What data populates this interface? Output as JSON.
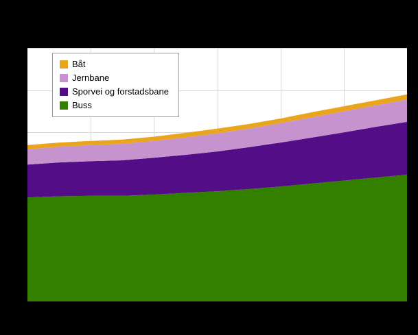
{
  "figure": {
    "background": "#000000",
    "plot_background": "#ffffff",
    "gridline_color": "#d8d8d8"
  },
  "legend": {
    "items": [
      {
        "label": "Båt",
        "color": "#e9a51d"
      },
      {
        "label": "Jernbane",
        "color": "#c693ce"
      },
      {
        "label": "Sporvei og forstadsbane",
        "color": "#520d87"
      },
      {
        "label": "Buss",
        "color": "#338000"
      }
    ]
  },
  "chart_data": {
    "type": "area",
    "stacked": true,
    "title": "",
    "xlabel": "",
    "ylabel": "",
    "x": [
      0,
      1,
      2,
      3,
      4,
      5,
      6,
      7,
      8,
      9,
      10,
      11,
      12
    ],
    "x_tick_labels_visible": false,
    "y_tick_labels_visible": false,
    "ylim": [
      0,
      600
    ],
    "grid": {
      "on": true,
      "x_divisions": 6,
      "y_divisions": 6
    },
    "legend_position": "top-left-inside",
    "series": [
      {
        "name": "Buss",
        "color": "#338000",
        "values": [
          246,
          249,
          250,
          250,
          253,
          257,
          261,
          266,
          272,
          279,
          286,
          293,
          300
        ]
      },
      {
        "name": "Sporvei og forstadsbane",
        "color": "#520d87",
        "values": [
          78,
          80,
          82,
          84,
          87,
          90,
          94,
          99,
          104,
          109,
          114,
          120,
          125
        ]
      },
      {
        "name": "Jernbane",
        "color": "#c693ce",
        "values": [
          36,
          37,
          38,
          39,
          40,
          41,
          43,
          44,
          46,
          48,
          50,
          51,
          53
        ]
      },
      {
        "name": "Båt",
        "color": "#e9a51d",
        "values": [
          10,
          10,
          10,
          10,
          10,
          11,
          11,
          11,
          11,
          12,
          12,
          12,
          12
        ]
      }
    ]
  }
}
